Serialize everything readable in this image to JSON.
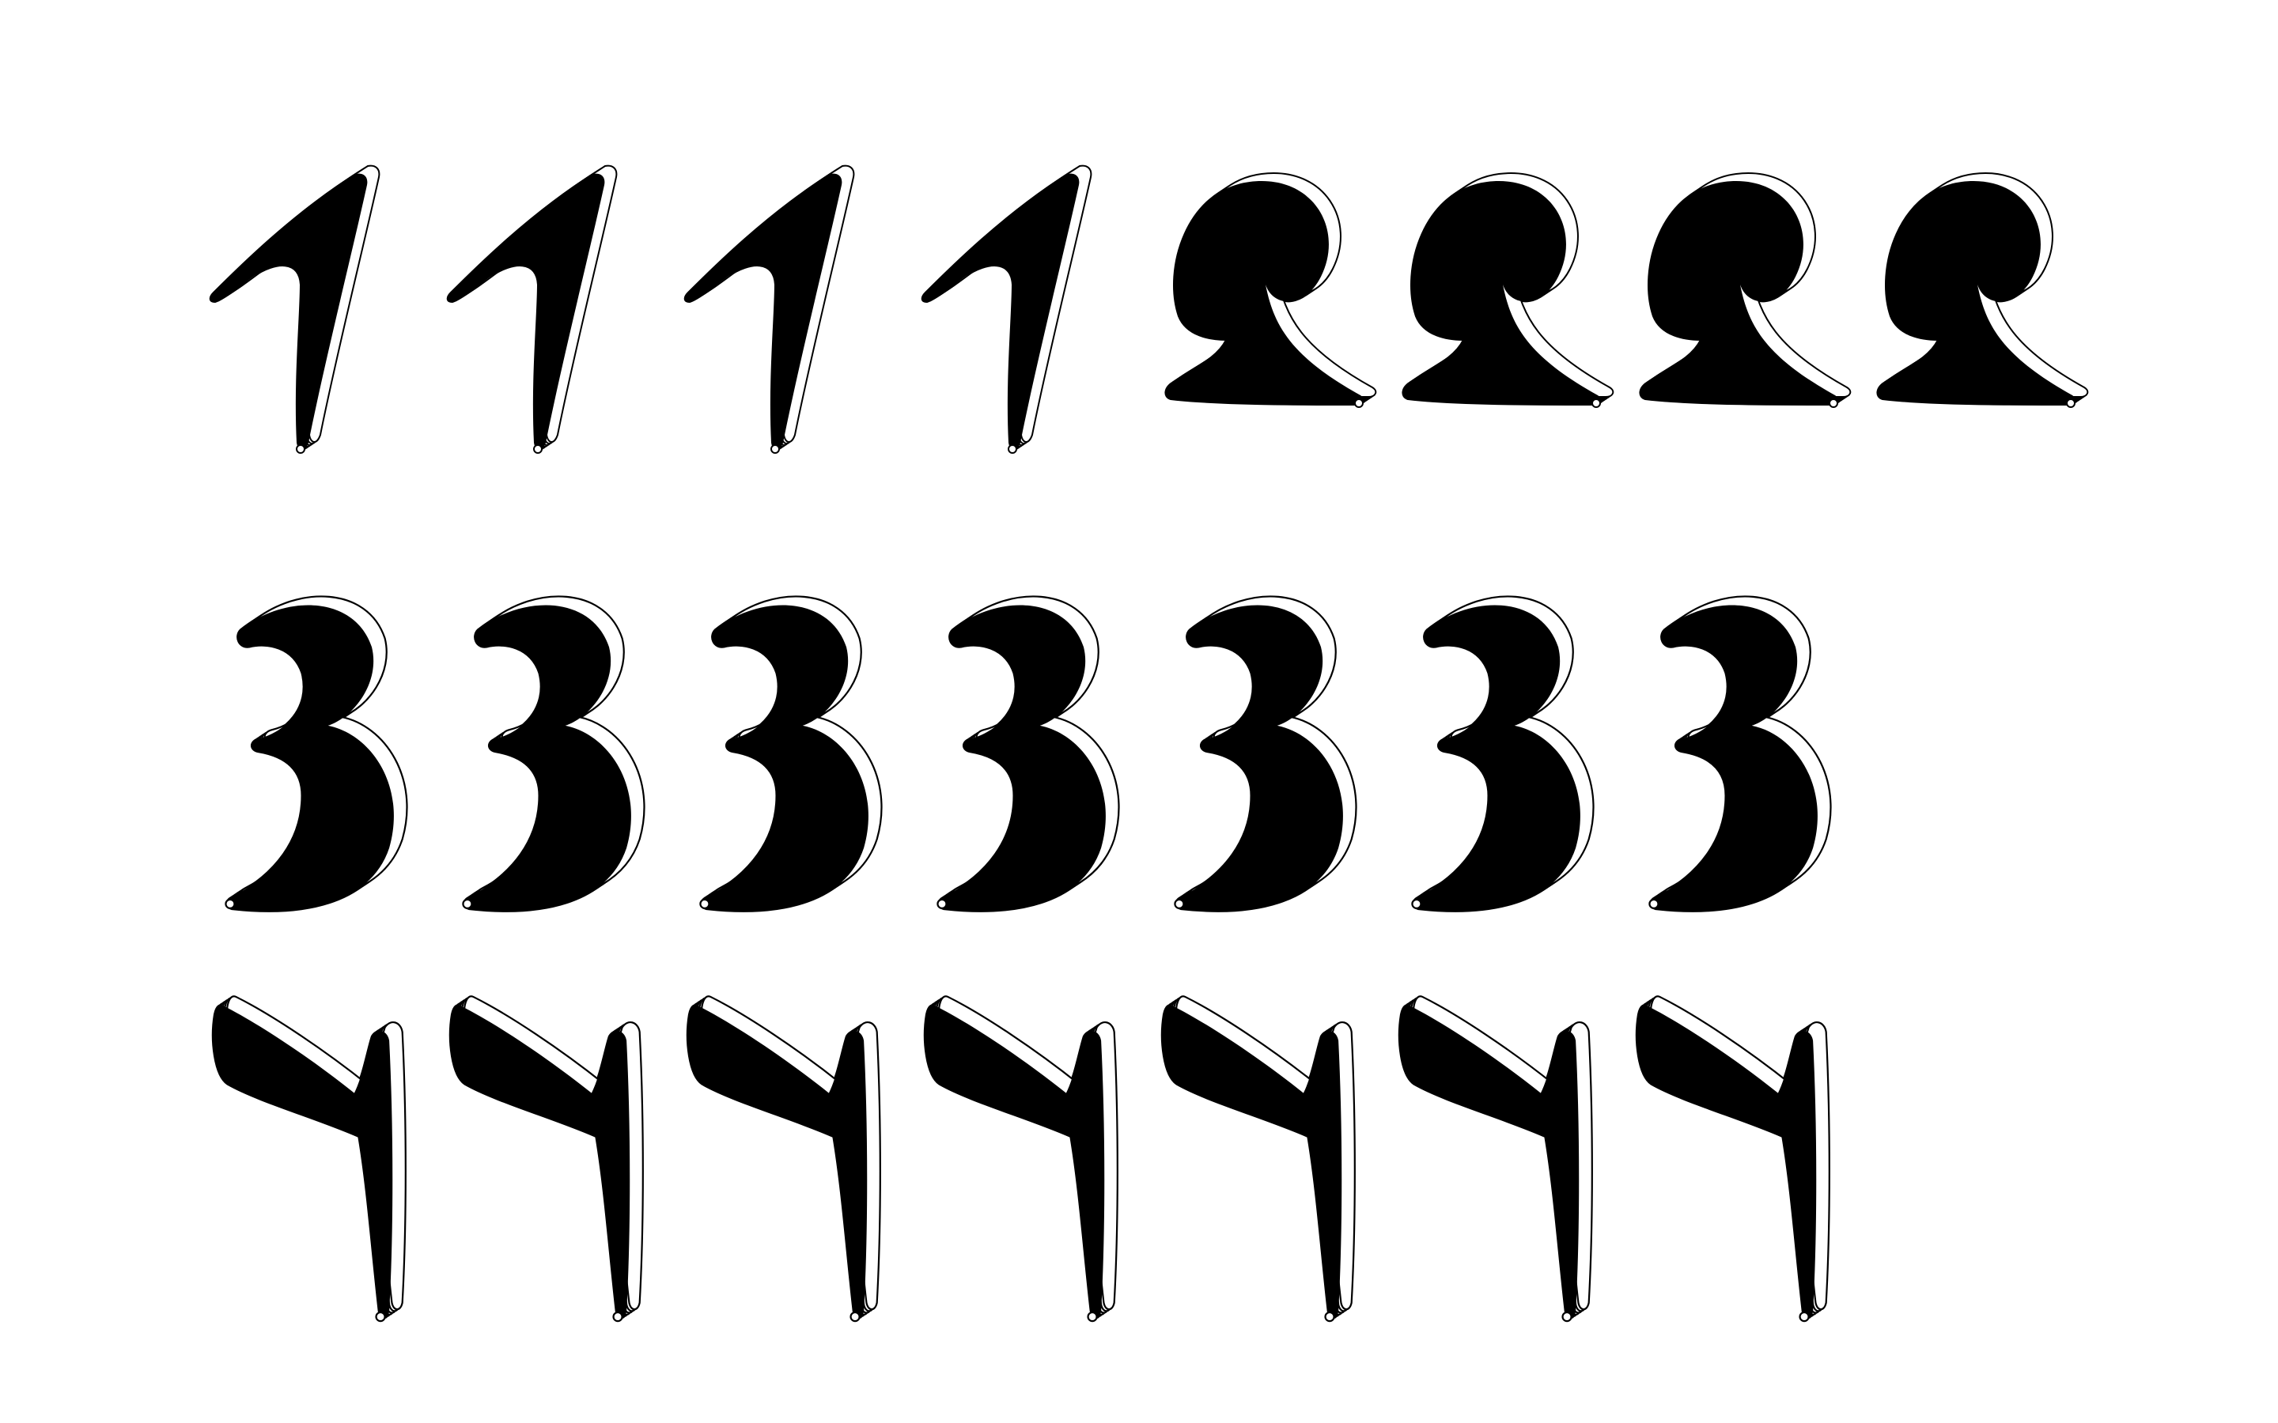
{
  "figure": {
    "background": "#ffffff",
    "ink": "#000000",
    "rows": [
      {
        "glyph": "1",
        "variants": 4
      },
      {
        "glyph": "2",
        "variants": 4
      },
      {
        "glyph": "3",
        "variants": 7
      },
      {
        "glyph": "4",
        "variants": 7
      }
    ]
  }
}
